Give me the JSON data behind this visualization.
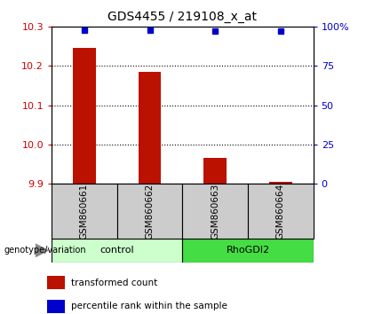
{
  "title": "GDS4455 / 219108_x_at",
  "samples": [
    "GSM860661",
    "GSM860662",
    "GSM860663",
    "GSM860664"
  ],
  "bar_values": [
    10.245,
    10.185,
    9.965,
    9.905
  ],
  "percentile_values": [
    98,
    98,
    97,
    97
  ],
  "ylim_left": [
    9.9,
    10.3
  ],
  "ylim_right": [
    0,
    100
  ],
  "yticks_left": [
    9.9,
    10.0,
    10.1,
    10.2,
    10.3
  ],
  "yticks_right": [
    0,
    25,
    50,
    75,
    100
  ],
  "ytick_right_labels": [
    "0",
    "25",
    "50",
    "75",
    "100%"
  ],
  "bar_color": "#BB1100",
  "dot_color": "#0000CC",
  "groups": [
    {
      "label": "control",
      "indices": [
        0,
        1
      ],
      "color": "#CCFFCC"
    },
    {
      "label": "RhoGDI2",
      "indices": [
        2,
        3
      ],
      "color": "#44DD44"
    }
  ],
  "group_label_prefix": "genotype/variation",
  "legend_items": [
    {
      "color": "#BB1100",
      "label": "transformed count"
    },
    {
      "color": "#0000CC",
      "label": "percentile rank within the sample"
    }
  ],
  "tick_label_color_left": "#CC0000",
  "tick_label_color_right": "#0000CC",
  "sample_box_color": "#CCCCCC",
  "bar_bottom": 9.9,
  "bar_width": 0.35
}
